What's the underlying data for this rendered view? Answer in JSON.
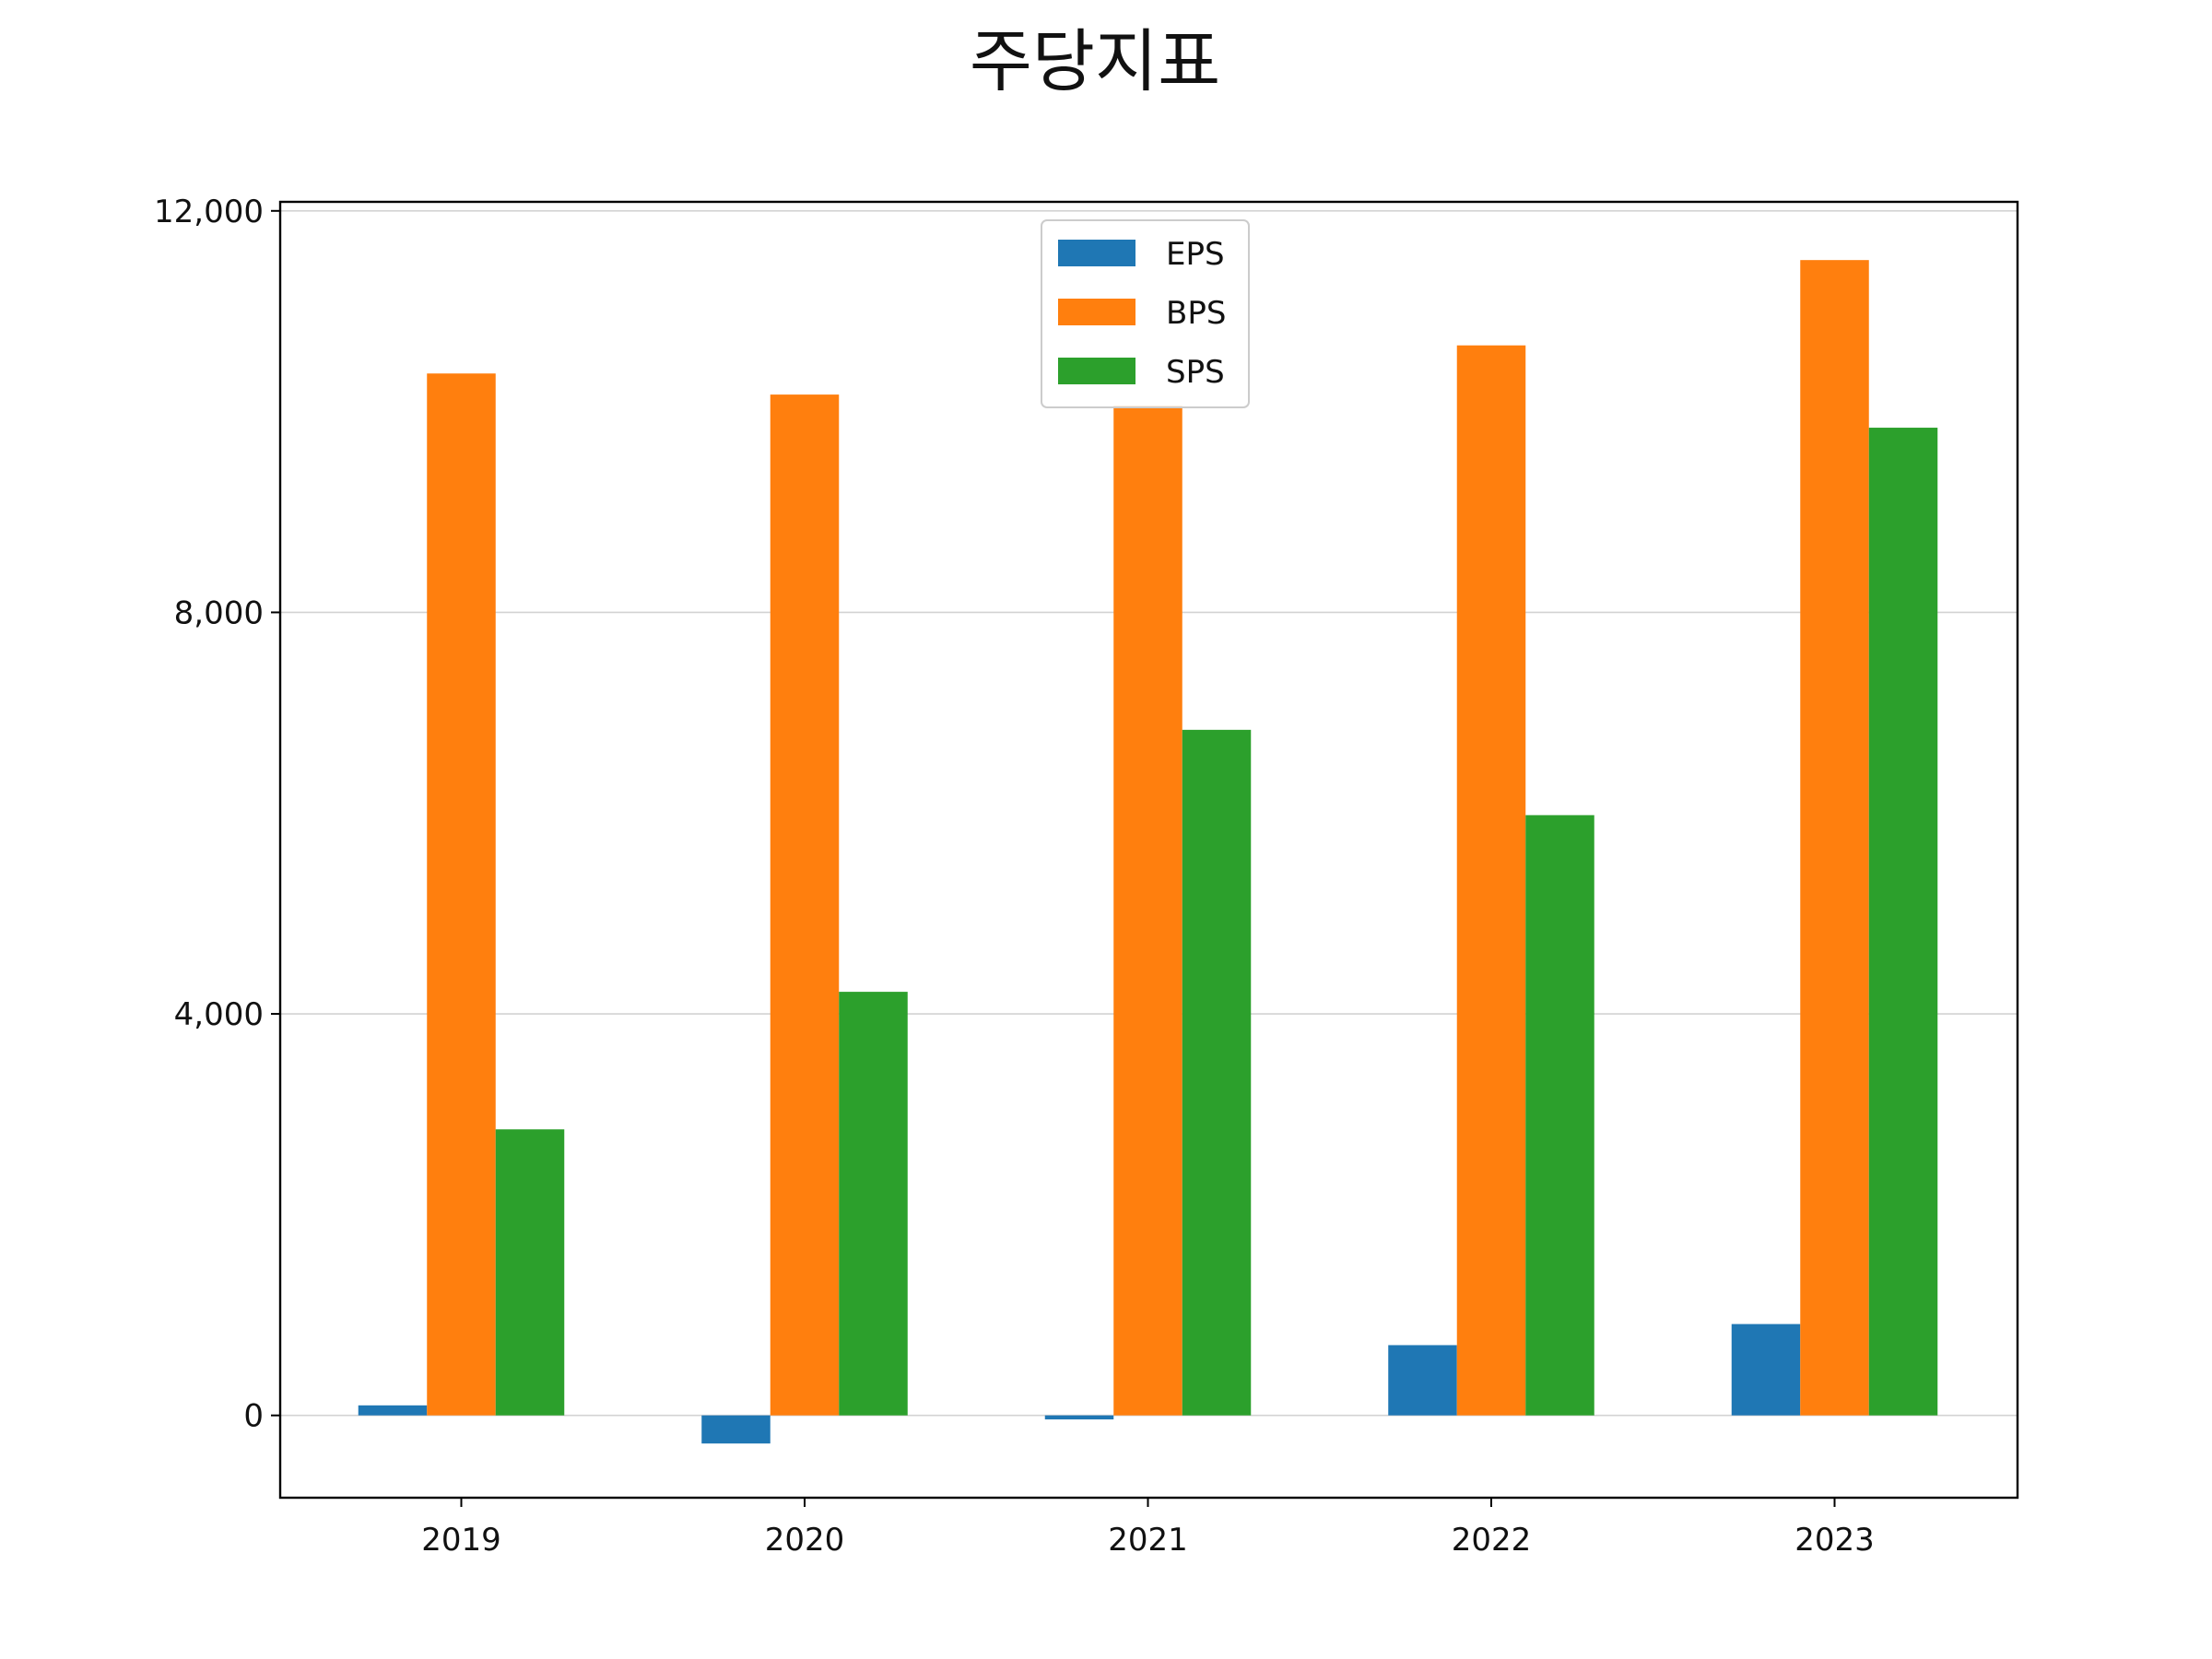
{
  "chart_data": {
    "type": "bar",
    "title": "주당지표",
    "xlabel": "",
    "ylabel": "",
    "categories": [
      "2019",
      "2020",
      "2021",
      "2022",
      "2023"
    ],
    "series": [
      {
        "name": "EPS",
        "values": [
          100,
          -280,
          -40,
          700,
          910
        ],
        "color": "#1f77b4"
      },
      {
        "name": "BPS",
        "values": [
          10380,
          10170,
          10060,
          10660,
          11510
        ],
        "color": "#ff7f0e"
      },
      {
        "name": "SPS",
        "values": [
          2850,
          4220,
          6830,
          5980,
          9840
        ],
        "color": "#2ca02c"
      }
    ],
    "ylim": [
      -820,
      12090
    ],
    "yticks": [
      0,
      4000,
      8000,
      12000
    ],
    "ytick_labels": [
      "0",
      "4,000",
      "8,000",
      "12,000"
    ],
    "grid": "y",
    "legend_position": "upper-center"
  }
}
